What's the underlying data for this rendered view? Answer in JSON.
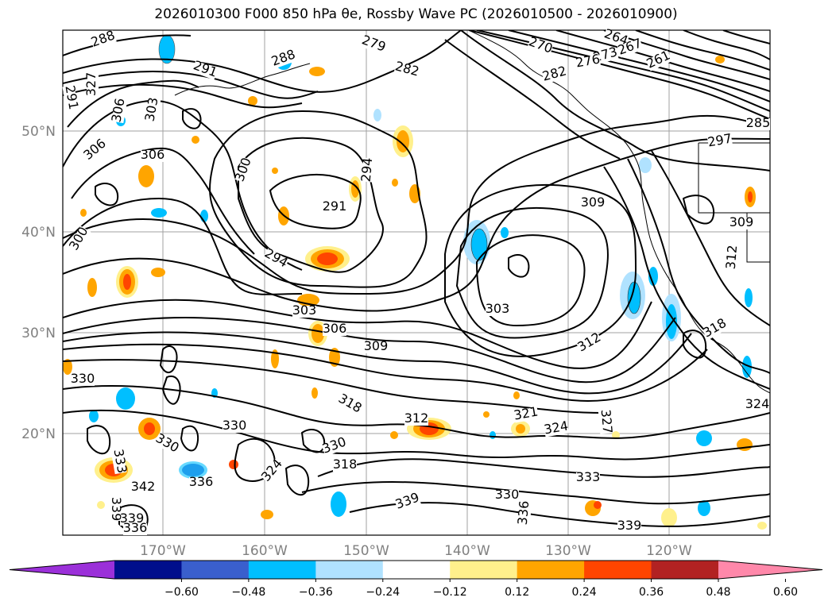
{
  "title": "2026010300 F000 850 hPa θe, Rossby Wave PC (2026010500 - 2026010900)",
  "map": {
    "lon_ticks": [
      "170°W",
      "160°W",
      "150°W",
      "140°W",
      "130°W",
      "120°W"
    ],
    "lat_ticks": [
      "50°N",
      "40°N",
      "30°N",
      "20°N"
    ],
    "contour_labels": [
      {
        "text": "288"
      },
      {
        "text": "279"
      },
      {
        "text": "270"
      },
      {
        "text": "264"
      },
      {
        "text": "273"
      },
      {
        "text": "267"
      },
      {
        "text": "261"
      },
      {
        "text": "276"
      },
      {
        "text": "282"
      },
      {
        "text": "282"
      },
      {
        "text": "291"
      },
      {
        "text": "288"
      },
      {
        "text": "291"
      },
      {
        "text": "303"
      },
      {
        "text": "300"
      },
      {
        "text": "306"
      },
      {
        "text": "306"
      },
      {
        "text": "306"
      },
      {
        "text": "300"
      },
      {
        "text": "294"
      },
      {
        "text": "291"
      },
      {
        "text": "294"
      },
      {
        "text": "309"
      },
      {
        "text": "297"
      },
      {
        "text": "285"
      },
      {
        "text": "309"
      },
      {
        "text": "312"
      },
      {
        "text": "303"
      },
      {
        "text": "303"
      },
      {
        "text": "306"
      },
      {
        "text": "309"
      },
      {
        "text": "312"
      },
      {
        "text": "318"
      },
      {
        "text": "330"
      },
      {
        "text": "318"
      },
      {
        "text": "312"
      },
      {
        "text": "321"
      },
      {
        "text": "327"
      },
      {
        "text": "324"
      },
      {
        "text": "324"
      },
      {
        "text": "330"
      },
      {
        "text": "330"
      },
      {
        "text": "330"
      },
      {
        "text": "318"
      },
      {
        "text": "324"
      },
      {
        "text": "333"
      },
      {
        "text": "336"
      },
      {
        "text": "339"
      },
      {
        "text": "342"
      },
      {
        "text": "339"
      },
      {
        "text": "330"
      },
      {
        "text": "336"
      },
      {
        "text": "333"
      },
      {
        "text": "339"
      },
      {
        "text": "339"
      },
      {
        "text": "336"
      },
      {
        "text": "327"
      }
    ]
  },
  "colorbar": {
    "ticks": [
      "−0.60",
      "−0.48",
      "−0.36",
      "−0.24",
      "−0.12",
      "0.12",
      "0.24",
      "0.36",
      "0.48",
      "0.60"
    ],
    "colors": [
      "#9b30d9",
      "#000e8c",
      "#3a5fcd",
      "#00bfff",
      "#b0e2ff",
      "#ffffff",
      "#fff08c",
      "#ffa500",
      "#ff4500",
      "#b22222",
      "#ff88aa"
    ]
  }
}
